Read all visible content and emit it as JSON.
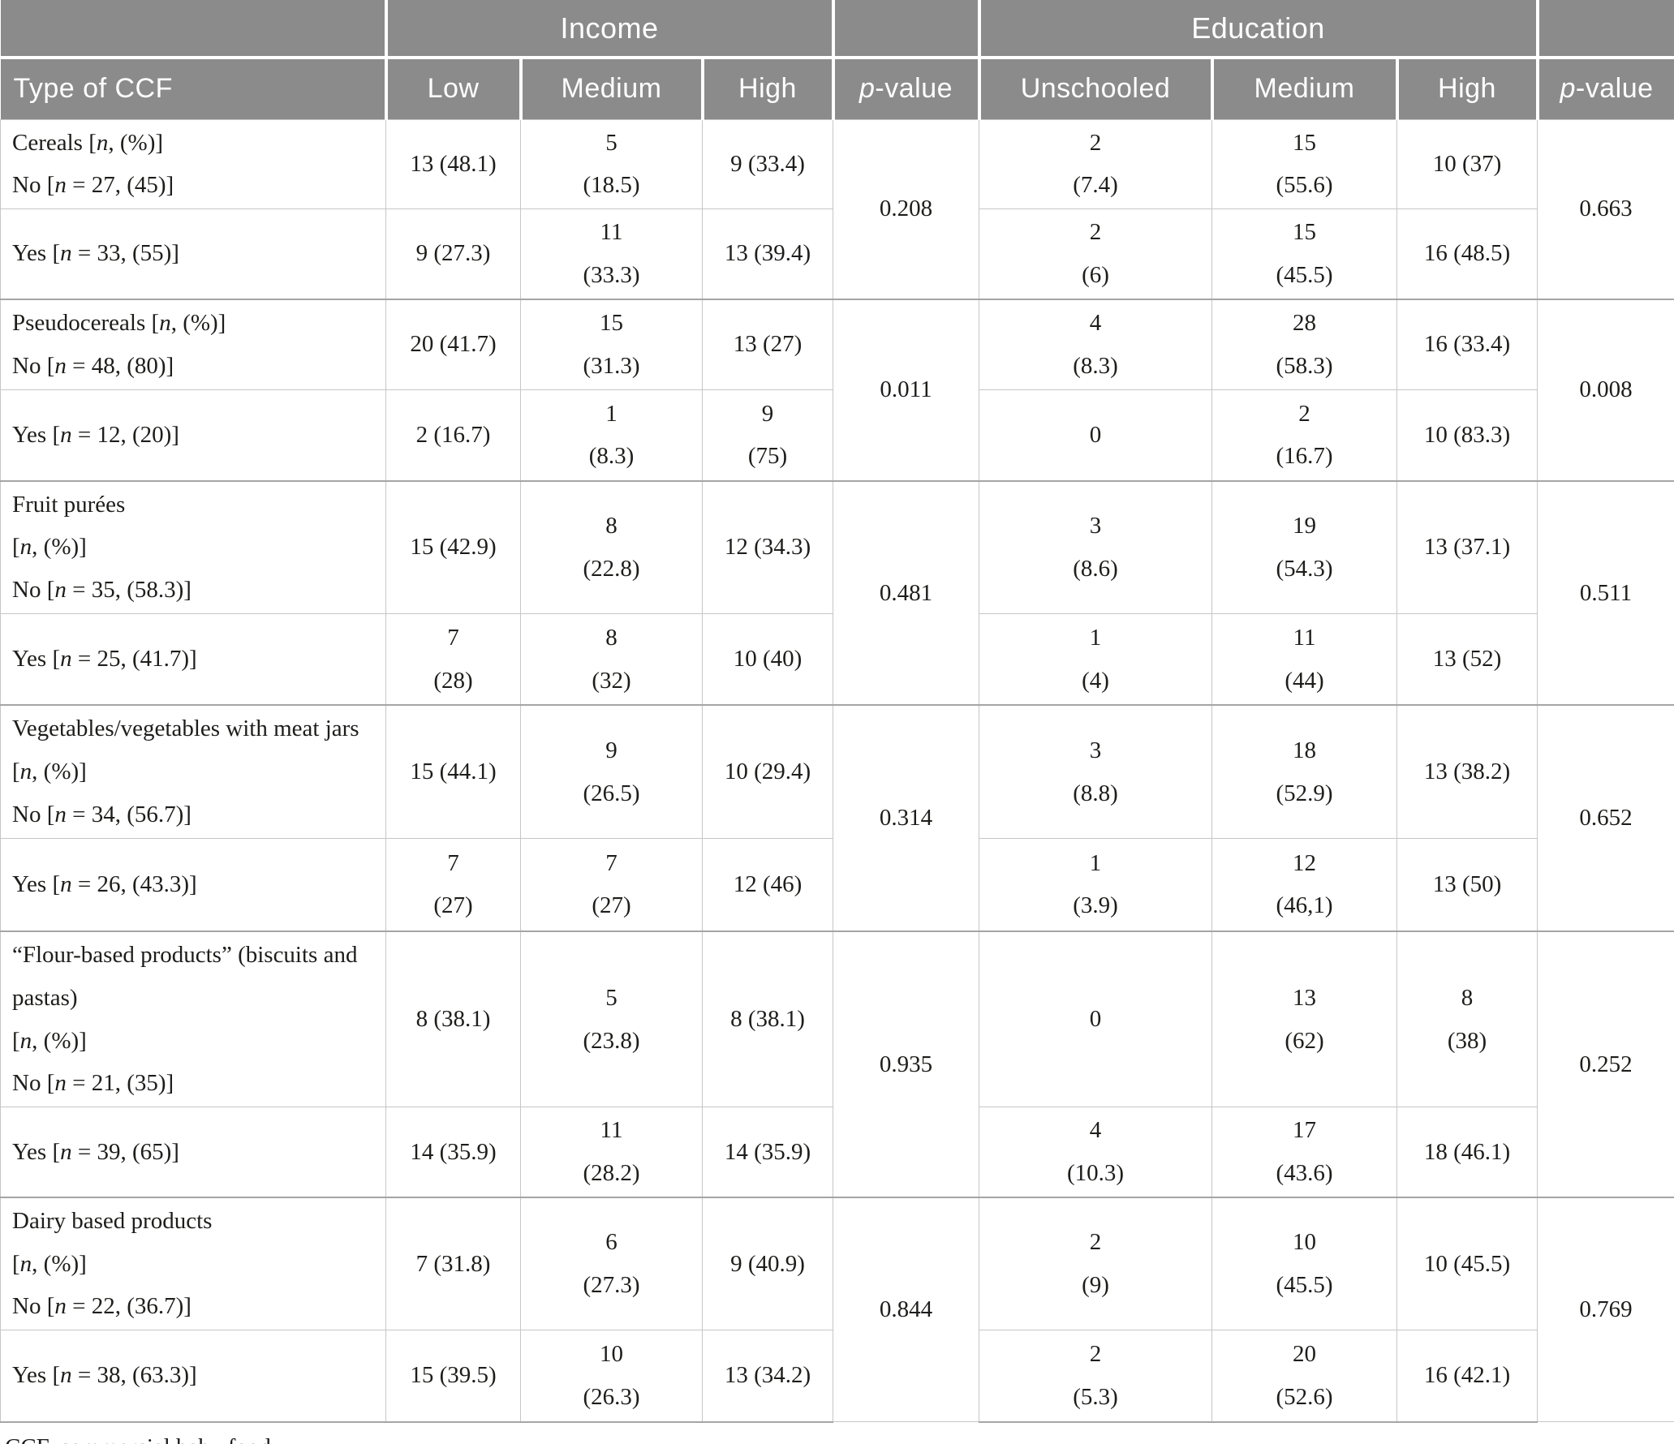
{
  "header": {
    "income_group": "Income",
    "education_group": "Education",
    "type_col": "Type of CCF",
    "income_cols": {
      "low": "Low",
      "medium": "Medium",
      "high": "High"
    },
    "p_value_html": "<i>p</i>-value",
    "education_cols": {
      "unschooled": "Unschooled",
      "medium": "Medium",
      "high": "High"
    }
  },
  "groups": [
    {
      "name": "Cereals",
      "no_label_html": "Cereals [<i>n</i>, (%)]<br>No [<i>n</i> = 27, (45)]",
      "yes_label_html": "Yes [<i>n</i> = 33, (55)]",
      "p_income": "0.208",
      "p_education": "0.663",
      "no": {
        "low": "13 (48.1)",
        "medium": "5\n(18.5)",
        "high": "9 (33.4)",
        "unschooled": "2\n(7.4)",
        "medium_edu": "15\n(55.6)",
        "high_edu": "10 (37)"
      },
      "yes": {
        "low": "9 (27.3)",
        "medium": "11\n(33.3)",
        "high": "13 (39.4)",
        "unschooled": "2\n(6)",
        "medium_edu": "15\n(45.5)",
        "high_edu": "16 (48.5)"
      }
    },
    {
      "name": "Pseudocereals",
      "no_label_html": "Pseudocereals [<i>n</i>, (%)]<br>No [<i>n</i> = 48, (80)]",
      "yes_label_html": "Yes [<i>n</i> = 12, (20)]",
      "p_income": "0.011",
      "p_education": "0.008",
      "no": {
        "low": "20 (41.7)",
        "medium": "15\n(31.3)",
        "high": "13 (27)",
        "unschooled": "4\n(8.3)",
        "medium_edu": "28\n(58.3)",
        "high_edu": "16 (33.4)"
      },
      "yes": {
        "low": "2 (16.7)",
        "medium": "1\n(8.3)",
        "high": "9\n(75)",
        "unschooled": "0",
        "medium_edu": "2\n(16.7)",
        "high_edu": "10 (83.3)"
      }
    },
    {
      "name": "Fruit purées",
      "no_label_html": "Fruit purées<br>[<i>n</i>, (%)]<br>No [<i>n</i> = 35, (58.3)]",
      "yes_label_html": "Yes [<i>n</i> = 25, (41.7)]",
      "p_income": "0.481",
      "p_education": "0.511",
      "no": {
        "low": "15 (42.9)",
        "medium": "8\n(22.8)",
        "high": "12 (34.3)",
        "unschooled": "3\n(8.6)",
        "medium_edu": "19\n(54.3)",
        "high_edu": "13 (37.1)"
      },
      "yes": {
        "low": "7\n(28)",
        "medium": "8\n(32)",
        "high": "10 (40)",
        "unschooled": "1\n(4)",
        "medium_edu": "11\n(44)",
        "high_edu": "13 (52)"
      }
    },
    {
      "name": "Vegetables/vegetables with meat jars",
      "no_label_html": "Vegetables/vegetables with meat jars<br>[<i>n</i>, (%)]<br>No [<i>n</i> = 34, (56.7)]",
      "yes_label_html": "Yes [<i>n</i> = 26, (43.3)]",
      "p_income": "0.314",
      "p_education": "0.652",
      "no": {
        "low": "15 (44.1)",
        "medium": "9\n(26.5)",
        "high": "10 (29.4)",
        "unschooled": "3\n(8.8)",
        "medium_edu": "18\n(52.9)",
        "high_edu": "13 (38.2)"
      },
      "yes": {
        "low": "7\n(27)",
        "medium": "7\n(27)",
        "high": "12 (46)",
        "unschooled": "1\n(3.9)",
        "medium_edu": "12\n(46,1)",
        "high_edu": "13 (50)"
      }
    },
    {
      "name": "Flour-based products",
      "no_label_html": "“Flour-based products” (biscuits and<br>pastas)<br>[<i>n</i>, (%)]<br>No [<i>n</i> = 21, (35)]",
      "yes_label_html": "Yes [<i>n</i> = 39, (65)]",
      "p_income": "0.935",
      "p_education": "0.252",
      "no": {
        "low": "8 (38.1)",
        "medium": "5\n(23.8)",
        "high": "8 (38.1)",
        "unschooled": "0",
        "medium_edu": "13\n(62)",
        "high_edu": "8\n(38)"
      },
      "yes": {
        "low": "14 (35.9)",
        "medium": "11\n(28.2)",
        "high": "14 (35.9)",
        "unschooled": "4\n(10.3)",
        "medium_edu": "17\n(43.6)",
        "high_edu": "18 (46.1)"
      }
    },
    {
      "name": "Dairy based products",
      "no_label_html": "Dairy based products<br>[<i>n</i>, (%)]<br>No [<i>n</i> = 22, (36.7)]",
      "yes_label_html": "Yes [<i>n</i> = 38, (63.3)]",
      "p_income": "0.844",
      "p_education": "0.769",
      "no": {
        "low": "7 (31.8)",
        "medium": "6\n(27.3)",
        "high": "9 (40.9)",
        "unschooled": "2\n(9)",
        "medium_edu": "10\n(45.5)",
        "high_edu": "10 (45.5)"
      },
      "yes": {
        "low": "15 (39.5)",
        "medium": "10\n(26.3)",
        "high": "13 (34.2)",
        "unschooled": "2\n(5.3)",
        "medium_edu": "20\n(52.6)",
        "high_edu": "16 (42.1)"
      }
    }
  ],
  "footnote": "CCF, commercial baby food.",
  "colors": {
    "header_bg": "#8b8b8b",
    "header_text": "#ffffff",
    "body_text": "#1d1d1b",
    "border_light": "#c6c6c6",
    "border_group": "#a5a5a5"
  }
}
